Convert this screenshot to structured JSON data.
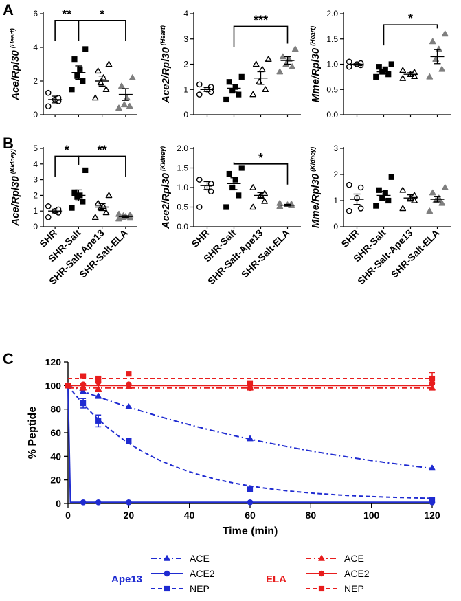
{
  "panels": [
    "A",
    "B",
    "C"
  ],
  "groups": [
    "SHR",
    "SHR-Salt",
    "SHR-Salt-Ape13",
    "SHR-Salt-ELA"
  ],
  "chart_data": [
    {
      "id": "A1",
      "type": "scatter",
      "tissue": "Heart",
      "ylabel_main": "Ace/Rpl30",
      "ylabel_sup": "(Heart)",
      "ylim": [
        0,
        6
      ],
      "yticks": [
        0,
        2,
        4,
        6
      ],
      "ytick_labels": [
        "0",
        "2",
        "4",
        "6"
      ],
      "points": [
        [
          0.5,
          0.8,
          0.9,
          1.0,
          1.3
        ],
        [
          1.5,
          2.0,
          2.3,
          2.7,
          3.3,
          3.9
        ],
        [
          1.0,
          1.5,
          1.9,
          2.2,
          2.6,
          3.0
        ],
        [
          0.4,
          0.5,
          0.6,
          1.0,
          1.7,
          2.2
        ]
      ],
      "mean": [
        0.9,
        2.5,
        2.0,
        1.2
      ],
      "sem": [
        0.2,
        0.4,
        0.3,
        0.35
      ],
      "sig": [
        {
          "from": 0,
          "to": 1,
          "label": "**",
          "y": 5.6
        },
        {
          "from": 1,
          "to": 3,
          "label": "*",
          "y": 5.6
        }
      ]
    },
    {
      "id": "A2",
      "type": "scatter",
      "tissue": "Heart",
      "ylabel_main": "Ace2/Rpl30",
      "ylabel_sup": "(Heart)",
      "ylim": [
        0,
        4
      ],
      "yticks": [
        0,
        1,
        2,
        3,
        4
      ],
      "ytick_labels": [
        "0",
        "1",
        "2",
        "3",
        "4"
      ],
      "points": [
        [
          0.8,
          0.9,
          1.0,
          1.1,
          1.2
        ],
        [
          0.6,
          0.8,
          0.95,
          1.1,
          1.3,
          1.5
        ],
        [
          0.8,
          1.0,
          1.3,
          1.8,
          2.0,
          2.2
        ],
        [
          1.7,
          1.9,
          2.0,
          2.2,
          2.3,
          2.6
        ]
      ],
      "mean": [
        1.0,
        1.05,
        1.45,
        2.15
      ],
      "sem": [
        0.08,
        0.15,
        0.25,
        0.15
      ],
      "sig": [
        {
          "from": 1,
          "to": 3,
          "label": "***",
          "y": 3.5
        }
      ]
    },
    {
      "id": "A3",
      "type": "scatter",
      "tissue": "Heart",
      "ylabel_main": "Mme/Rpl30",
      "ylabel_sup": "(Heart)",
      "ylim": [
        0,
        2
      ],
      "yticks": [
        0,
        0.5,
        1.0,
        1.5,
        2.0
      ],
      "ytick_labels": [
        "0.0",
        "0.5",
        "1.0",
        "1.5",
        "2.0"
      ],
      "points": [
        [
          0.95,
          0.98,
          1.0,
          1.02,
          1.05
        ],
        [
          0.75,
          0.8,
          0.85,
          0.9,
          0.95,
          1.0
        ],
        [
          0.72,
          0.76,
          0.8,
          0.84,
          0.88
        ],
        [
          0.75,
          0.9,
          1.1,
          1.3,
          1.45,
          1.6
        ]
      ],
      "mean": [
        1.0,
        0.85,
        0.8,
        1.15
      ],
      "sem": [
        0.02,
        0.04,
        0.03,
        0.14
      ],
      "sig": [
        {
          "from": 1,
          "to": 3,
          "label": "*",
          "y": 1.78
        }
      ]
    },
    {
      "id": "B1",
      "type": "scatter",
      "tissue": "Kidney",
      "ylabel_main": "Ace/Rpl30",
      "ylabel_sup": "(Kidney)",
      "ylim": [
        0,
        5
      ],
      "yticks": [
        0,
        1,
        2,
        3,
        4,
        5
      ],
      "ytick_labels": [
        "0",
        "1",
        "2",
        "3",
        "4",
        "5"
      ],
      "points": [
        [
          0.6,
          0.9,
          1.0,
          1.1,
          1.3
        ],
        [
          1.2,
          1.6,
          1.9,
          2.0,
          2.2,
          3.6
        ],
        [
          0.6,
          0.9,
          1.2,
          1.3,
          1.5,
          2.0
        ],
        [
          0.5,
          0.55,
          0.6,
          0.65,
          0.7,
          0.75,
          0.8
        ]
      ],
      "mean": [
        1.0,
        2.0,
        1.25,
        0.65
      ],
      "sem": [
        0.12,
        0.35,
        0.22,
        0.05
      ],
      "sig": [
        {
          "from": 0,
          "to": 1,
          "label": "*",
          "y": 4.5
        },
        {
          "from": 1,
          "to": 3,
          "label": "**",
          "y": 4.5
        }
      ]
    },
    {
      "id": "B2",
      "type": "scatter",
      "tissue": "Kidney",
      "ylabel_main": "Ace2/Rpl30",
      "ylabel_sup": "(Kidney)",
      "ylim": [
        0,
        2
      ],
      "yticks": [
        0,
        0.5,
        1.0,
        1.5,
        2.0
      ],
      "ytick_labels": [
        "0.0",
        "0.5",
        "1.0",
        "1.5",
        "2.0"
      ],
      "points": [
        [
          0.5,
          0.9,
          1.0,
          1.1,
          1.2
        ],
        [
          0.5,
          0.8,
          1.0,
          1.2,
          1.35,
          1.5
        ],
        [
          0.5,
          0.65,
          0.8,
          0.85,
          1.0
        ],
        [
          0.52,
          0.54,
          0.56,
          0.58,
          0.6
        ]
      ],
      "mean": [
        1.05,
        1.1,
        0.8,
        0.55
      ],
      "sem": [
        0.1,
        0.15,
        0.07,
        0.02
      ],
      "sig": [
        {
          "from": 1,
          "to": 3,
          "label": "*",
          "y": 1.6
        }
      ]
    },
    {
      "id": "B3",
      "type": "scatter",
      "tissue": "Kidney",
      "ylabel_main": "Mme/Rpl30",
      "ylabel_sup": "(Kidney)",
      "ylim": [
        0,
        3
      ],
      "yticks": [
        0,
        1,
        2,
        3
      ],
      "ytick_labels": [
        "0",
        "1",
        "2",
        "3"
      ],
      "points": [
        [
          0.6,
          0.7,
          1.1,
          1.5,
          1.6
        ],
        [
          0.8,
          1.0,
          1.1,
          1.3,
          1.4,
          1.9
        ],
        [
          0.7,
          1.0,
          1.1,
          1.2,
          1.4
        ],
        [
          0.6,
          0.9,
          1.0,
          1.1,
          1.3,
          1.5
        ]
      ],
      "mean": [
        1.05,
        1.2,
        1.1,
        1.05
      ],
      "sem": [
        0.2,
        0.15,
        0.12,
        0.1
      ],
      "sig": []
    },
    {
      "id": "C",
      "type": "line",
      "title": "",
      "xlabel": "Time (min)",
      "ylabel": "% Peptide",
      "xlim": [
        0,
        120
      ],
      "ylim": [
        0,
        120
      ],
      "xticks": [
        0,
        20,
        40,
        60,
        80,
        100,
        120
      ],
      "yticks": [
        0,
        20,
        40,
        60,
        80,
        100,
        120
      ],
      "series": [
        {
          "name": "ACE",
          "peptide": "Ape13",
          "color": "#1f2bd1",
          "marker": "triangle",
          "dash": "8 4 2 4",
          "x": [
            0,
            5,
            10,
            20,
            60,
            120
          ],
          "y": [
            100,
            95,
            91,
            82,
            55,
            30
          ],
          "fit": "exp",
          "k": 0.0101,
          "plateau": 0
        },
        {
          "name": "ACE2",
          "peptide": "Ape13",
          "color": "#1f2bd1",
          "marker": "circle",
          "dash": "",
          "x": [
            0,
            5,
            10,
            20,
            60,
            120
          ],
          "y": [
            100,
            1,
            1,
            1,
            1,
            1
          ],
          "fit": "fast"
        },
        {
          "name": "NEP",
          "peptide": "Ape13",
          "color": "#1f2bd1",
          "marker": "square",
          "dash": "6 4",
          "x": [
            0,
            5,
            10,
            20,
            60,
            120
          ],
          "y": [
            100,
            85,
            70,
            53,
            12,
            3
          ],
          "yerr": [
            2,
            4,
            5,
            2,
            1,
            2
          ],
          "fit": "exp",
          "k": 0.035,
          "plateau": 3
        },
        {
          "name": "ACE",
          "peptide": "ELA",
          "color": "#e81d1d",
          "marker": "triangle",
          "dash": "8 4 2 4",
          "x": [
            0,
            5,
            10,
            20,
            60,
            120
          ],
          "y": [
            100,
            98,
            97,
            99,
            98,
            98
          ],
          "fit": "flat",
          "level": 98
        },
        {
          "name": "ACE2",
          "peptide": "ELA",
          "color": "#e81d1d",
          "marker": "circle",
          "dash": "",
          "x": [
            0,
            5,
            10,
            20,
            60,
            120
          ],
          "y": [
            100,
            101,
            103,
            101,
            98,
            102
          ],
          "fit": "flat",
          "level": 100
        },
        {
          "name": "NEP",
          "peptide": "ELA",
          "color": "#e81d1d",
          "marker": "square",
          "dash": "6 4",
          "x": [
            0,
            5,
            10,
            20,
            60,
            120
          ],
          "y": [
            100,
            108,
            106,
            110,
            102,
            106
          ],
          "yerr": [
            1,
            1,
            1,
            1,
            2,
            5
          ],
          "fit": "flat",
          "level": 106
        }
      ],
      "legend": [
        {
          "title": "Ape13",
          "color": "#1f2bd1",
          "entries": [
            "ACE",
            "ACE2",
            "NEP"
          ]
        },
        {
          "title": "ELA",
          "color": "#e81d1d",
          "entries": [
            "ACE",
            "ACE2",
            "NEP"
          ]
        }
      ]
    }
  ]
}
